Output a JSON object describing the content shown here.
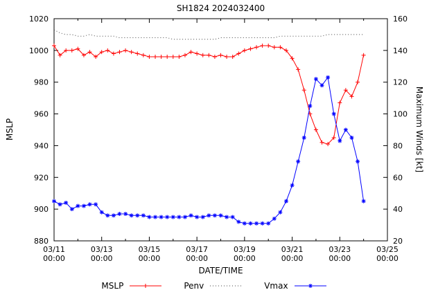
{
  "chart_data": {
    "type": "line",
    "title": "SH1824 2024032400",
    "xlabel": "DATE/TIME",
    "ylabel": "MSLP",
    "y2label": "Maximum Winds [kt]",
    "y_range": [
      880,
      1020
    ],
    "y_tick_step": 20,
    "y2_range": [
      20,
      160
    ],
    "y2_tick_step": 20,
    "x_range_days": [
      0,
      14
    ],
    "x_major_tick_days": 2,
    "x_minor_tick_days": 1,
    "start_day_offset": 0,
    "step_days": 0.25,
    "grid": "off",
    "legend_position": "bottom-center",
    "x_tick_labels": [
      [
        "03/11",
        "00:00"
      ],
      [
        "03/13",
        "00:00"
      ],
      [
        "03/15",
        "00:00"
      ],
      [
        "03/17",
        "00:00"
      ],
      [
        "03/19",
        "00:00"
      ],
      [
        "03/21",
        "00:00"
      ],
      [
        "03/23",
        "00:00"
      ],
      [
        "03/25",
        "00:00"
      ]
    ],
    "times": [
      "03/11 00:00",
      "03/11 06:00",
      "03/11 12:00",
      "03/11 18:00",
      "03/12 00:00",
      "03/12 06:00",
      "03/12 12:00",
      "03/12 18:00",
      "03/13 00:00",
      "03/13 06:00",
      "03/13 12:00",
      "03/13 18:00",
      "03/14 00:00",
      "03/14 06:00",
      "03/14 12:00",
      "03/14 18:00",
      "03/15 00:00",
      "03/15 06:00",
      "03/15 12:00",
      "03/15 18:00",
      "03/16 00:00",
      "03/16 06:00",
      "03/16 12:00",
      "03/16 18:00",
      "03/17 00:00",
      "03/17 06:00",
      "03/17 12:00",
      "03/17 18:00",
      "03/18 00:00",
      "03/18 06:00",
      "03/18 12:00",
      "03/18 18:00",
      "03/19 00:00",
      "03/19 06:00",
      "03/19 12:00",
      "03/19 18:00",
      "03/20 00:00",
      "03/20 06:00",
      "03/20 12:00",
      "03/20 18:00",
      "03/21 00:00",
      "03/21 06:00",
      "03/21 12:00",
      "03/21 18:00",
      "03/22 00:00",
      "03/22 06:00",
      "03/22 12:00",
      "03/22 18:00",
      "03/23 00:00",
      "03/23 06:00",
      "03/23 12:00",
      "03/23 18:00",
      "03/24 00:00"
    ],
    "series": [
      {
        "name": "MSLP",
        "axis": "y",
        "color": "#ff0000",
        "marker": "plus",
        "line": "solid",
        "values": [
          1003,
          997,
          1000,
          1000,
          1001,
          997,
          999,
          996,
          999,
          1000,
          998,
          999,
          1000,
          999,
          998,
          997,
          996,
          996,
          996,
          996,
          996,
          996,
          997,
          999,
          998,
          997,
          997,
          996,
          997,
          996,
          996,
          998,
          1000,
          1001,
          1002,
          1003,
          1003,
          1002,
          1002,
          1000,
          995,
          988,
          975,
          960,
          950,
          942,
          941,
          945,
          967,
          975,
          971,
          980,
          997
        ]
      },
      {
        "name": "Penv",
        "axis": "y",
        "color": "#444444",
        "marker": "none",
        "line": "dotted",
        "values": [
          1013,
          1011,
          1010,
          1010,
          1009,
          1009,
          1010,
          1009,
          1009,
          1009,
          1009,
          1008,
          1008,
          1008,
          1008,
          1008,
          1008,
          1008,
          1008,
          1008,
          1007,
          1007,
          1007,
          1007,
          1007,
          1007,
          1007,
          1007,
          1008,
          1008,
          1008,
          1008,
          1008,
          1008,
          1008,
          1008,
          1008,
          1008,
          1009,
          1009,
          1009,
          1009,
          1009,
          1009,
          1009,
          1009,
          1010,
          1010,
          1010,
          1010,
          1010,
          1010,
          1010
        ]
      },
      {
        "name": "Vmax",
        "axis": "y2",
        "color": "#0000ff",
        "marker": "asterisk",
        "line": "solid",
        "values": [
          45,
          43,
          44,
          40,
          42,
          42,
          43,
          43,
          38,
          36,
          36,
          37,
          37,
          36,
          36,
          36,
          35,
          35,
          35,
          35,
          35,
          35,
          35,
          36,
          35,
          35,
          36,
          36,
          36,
          35,
          35,
          32,
          31,
          31,
          31,
          31,
          31,
          34,
          38,
          45,
          55,
          70,
          85,
          105,
          122,
          118,
          123,
          100,
          83,
          90,
          85,
          70,
          45
        ]
      }
    ]
  }
}
